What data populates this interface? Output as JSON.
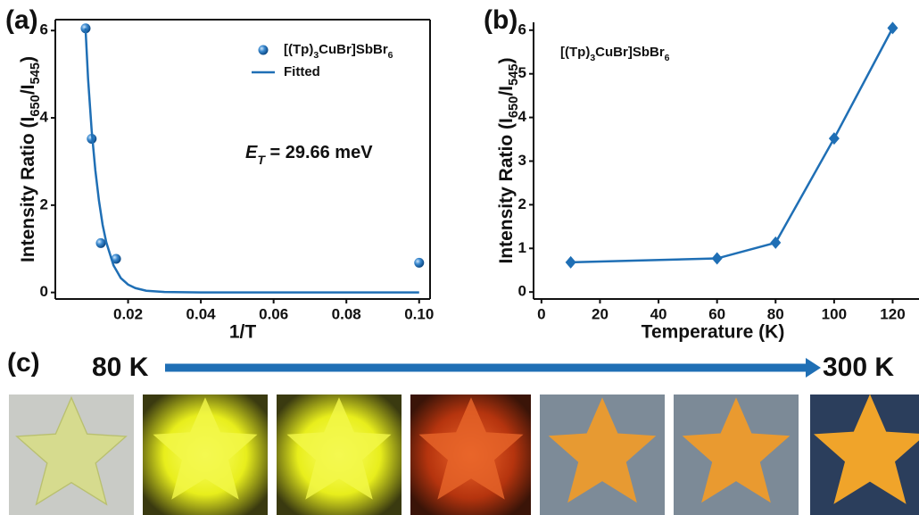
{
  "chart_data": [
    {
      "type": "scatter",
      "panel_label": "(a)",
      "xlabel": "1/T",
      "ylabel": "Intensity Ratio (I650/I545)",
      "annotation": "ET = 29.66 meV",
      "xlim": [
        0,
        0.103
      ],
      "ylim": [
        -0.15,
        6.25
      ],
      "xticks": [
        0.02,
        0.04,
        0.06,
        0.08,
        {
          "value": 0.1,
          "label": "0.10"
        }
      ],
      "yticks": [
        0,
        2,
        4,
        6
      ],
      "legend": "upper right",
      "series": [
        {
          "name": "[(Tp)3CuBr]SbBr6",
          "color": "#1f6fb5",
          "marker": "circle",
          "x": [
            0.00833,
            0.01,
            0.0125,
            0.0167,
            0.1
          ],
          "values": [
            6.05,
            3.52,
            1.13,
            0.77,
            0.68
          ]
        },
        {
          "name": "Fitted",
          "color": "#1f6fb5",
          "marker": "line",
          "x": [
            0.0083,
            0.009,
            0.01,
            0.011,
            0.012,
            0.013,
            0.014,
            0.016,
            0.018,
            0.02,
            0.022,
            0.025,
            0.03,
            0.04,
            0.06,
            0.08,
            0.1
          ],
          "values": [
            6.05,
            4.9,
            3.7,
            2.8,
            2.1,
            1.55,
            1.15,
            0.62,
            0.33,
            0.18,
            0.1,
            0.04,
            0.01,
            0,
            0,
            0,
            0
          ]
        }
      ]
    },
    {
      "type": "line",
      "panel_label": "(b)",
      "xlabel": "Temperature (K)",
      "ylabel": "Intensity Ratio (I650/I545)",
      "xlim": [
        -2.7,
        129
      ],
      "ylim": [
        -0.16,
        6.18
      ],
      "xticks": [
        0,
        20,
        40,
        60,
        80,
        100,
        120
      ],
      "yticks": [
        0,
        1,
        2,
        3,
        4,
        5,
        6
      ],
      "legend": "upper left",
      "legend_marker": false,
      "series": [
        {
          "name": "[(Tp)3CuBr]SbBr6",
          "color": "#1f6fb5",
          "marker": "diamond",
          "x": [
            10,
            60,
            80,
            100,
            120
          ],
          "values": [
            0.68,
            0.77,
            1.13,
            3.52,
            6.05
          ]
        }
      ]
    }
  ],
  "panel_c": {
    "label": "(c)",
    "start": "80 K",
    "end": "300 K"
  }
}
